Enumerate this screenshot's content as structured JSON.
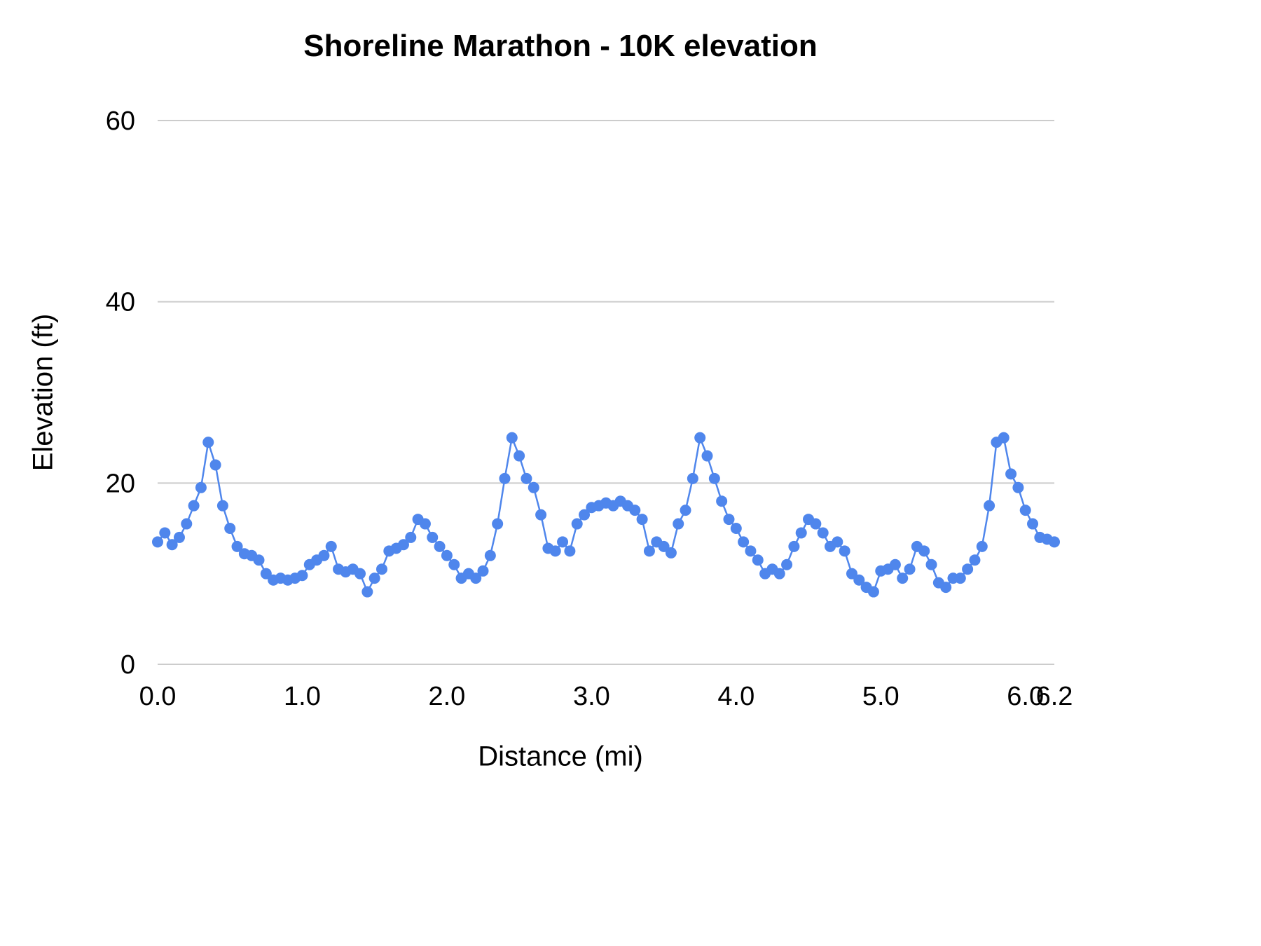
{
  "colors": {
    "series_blue": "#4f86ec",
    "gridline": "#cccccc",
    "text": "#000000"
  },
  "chart_data": {
    "type": "line",
    "title": "Shoreline Marathon - 10K elevation",
    "xlabel": "Distance (mi)",
    "ylabel": "Elevation (ft)",
    "xlim": [
      0,
      6.2
    ],
    "ylim": [
      0,
      60
    ],
    "grid": true,
    "legend": "none",
    "yticks": [
      0,
      20,
      40,
      60
    ],
    "ytick_labels": [
      "0",
      "20",
      "40",
      "60"
    ],
    "xticks": [
      0,
      1,
      2,
      3,
      4,
      5,
      6,
      6.2
    ],
    "xtick_labels": [
      "0.0",
      "1.0",
      "2.0",
      "3.0",
      "4.0",
      "5.0",
      "6.0",
      "6.2"
    ],
    "series": [
      {
        "color": "#4f86ec",
        "marker_radius": 8,
        "line_width": 2.5,
        "x": [
          0.0,
          0.05,
          0.1,
          0.15,
          0.2,
          0.25,
          0.3,
          0.35,
          0.4,
          0.45,
          0.5,
          0.55,
          0.6,
          0.65,
          0.7,
          0.75,
          0.8,
          0.85,
          0.9,
          0.95,
          1.0,
          1.05,
          1.1,
          1.15,
          1.2,
          1.25,
          1.3,
          1.35,
          1.4,
          1.45,
          1.5,
          1.55,
          1.6,
          1.65,
          1.7,
          1.75,
          1.8,
          1.85,
          1.9,
          1.95,
          2.0,
          2.05,
          2.1,
          2.15,
          2.2,
          2.25,
          2.3,
          2.35,
          2.4,
          2.45,
          2.5,
          2.55,
          2.6,
          2.65,
          2.7,
          2.75,
          2.8,
          2.85,
          2.9,
          2.95,
          3.0,
          3.05,
          3.1,
          3.15,
          3.2,
          3.25,
          3.3,
          3.35,
          3.4,
          3.45,
          3.5,
          3.55,
          3.6,
          3.65,
          3.7,
          3.75,
          3.8,
          3.85,
          3.9,
          3.95,
          4.0,
          4.05,
          4.1,
          4.15,
          4.2,
          4.25,
          4.3,
          4.35,
          4.4,
          4.45,
          4.5,
          4.55,
          4.6,
          4.65,
          4.7,
          4.75,
          4.8,
          4.85,
          4.9,
          4.95,
          5.0,
          5.05,
          5.1,
          5.15,
          5.2,
          5.25,
          5.3,
          5.35,
          5.4,
          5.45,
          5.5,
          5.55,
          5.6,
          5.65,
          5.7,
          5.75,
          5.8,
          5.85,
          5.9,
          5.95,
          6.0,
          6.05,
          6.1,
          6.15,
          6.2
        ],
        "y": [
          13.5,
          14.5,
          13.2,
          14.0,
          15.5,
          17.5,
          19.5,
          24.5,
          22.0,
          17.5,
          15.0,
          13.0,
          12.2,
          12.0,
          11.5,
          10.0,
          9.3,
          9.5,
          9.3,
          9.5,
          9.8,
          11.0,
          11.5,
          12.0,
          13.0,
          10.5,
          10.2,
          10.5,
          10.0,
          8.0,
          9.5,
          10.5,
          12.5,
          12.8,
          13.2,
          14.0,
          16.0,
          15.5,
          14.0,
          13.0,
          12.0,
          11.0,
          9.5,
          10.0,
          9.5,
          10.3,
          12.0,
          15.5,
          20.5,
          25.0,
          23.0,
          20.5,
          19.5,
          16.5,
          12.8,
          12.5,
          13.5,
          12.5,
          15.5,
          16.5,
          17.3,
          17.5,
          17.8,
          17.5,
          18.0,
          17.5,
          17.0,
          16.0,
          12.5,
          13.5,
          13.0,
          12.3,
          15.5,
          17.0,
          20.5,
          25.0,
          23.0,
          20.5,
          18.0,
          16.0,
          15.0,
          13.5,
          12.5,
          11.5,
          10.0,
          10.5,
          10.0,
          11.0,
          13.0,
          14.5,
          16.0,
          15.5,
          14.5,
          13.0,
          13.5,
          12.5,
          10.0,
          9.3,
          8.5,
          8.0,
          10.3,
          10.5,
          11.0,
          9.5,
          10.5,
          13.0,
          12.5,
          11.0,
          9.0,
          8.5,
          9.5,
          9.5,
          10.5,
          11.5,
          13.0,
          17.5,
          24.5,
          25.0,
          21.0,
          19.5,
          17.0,
          15.5,
          14.0,
          13.8,
          13.5
        ]
      }
    ]
  }
}
